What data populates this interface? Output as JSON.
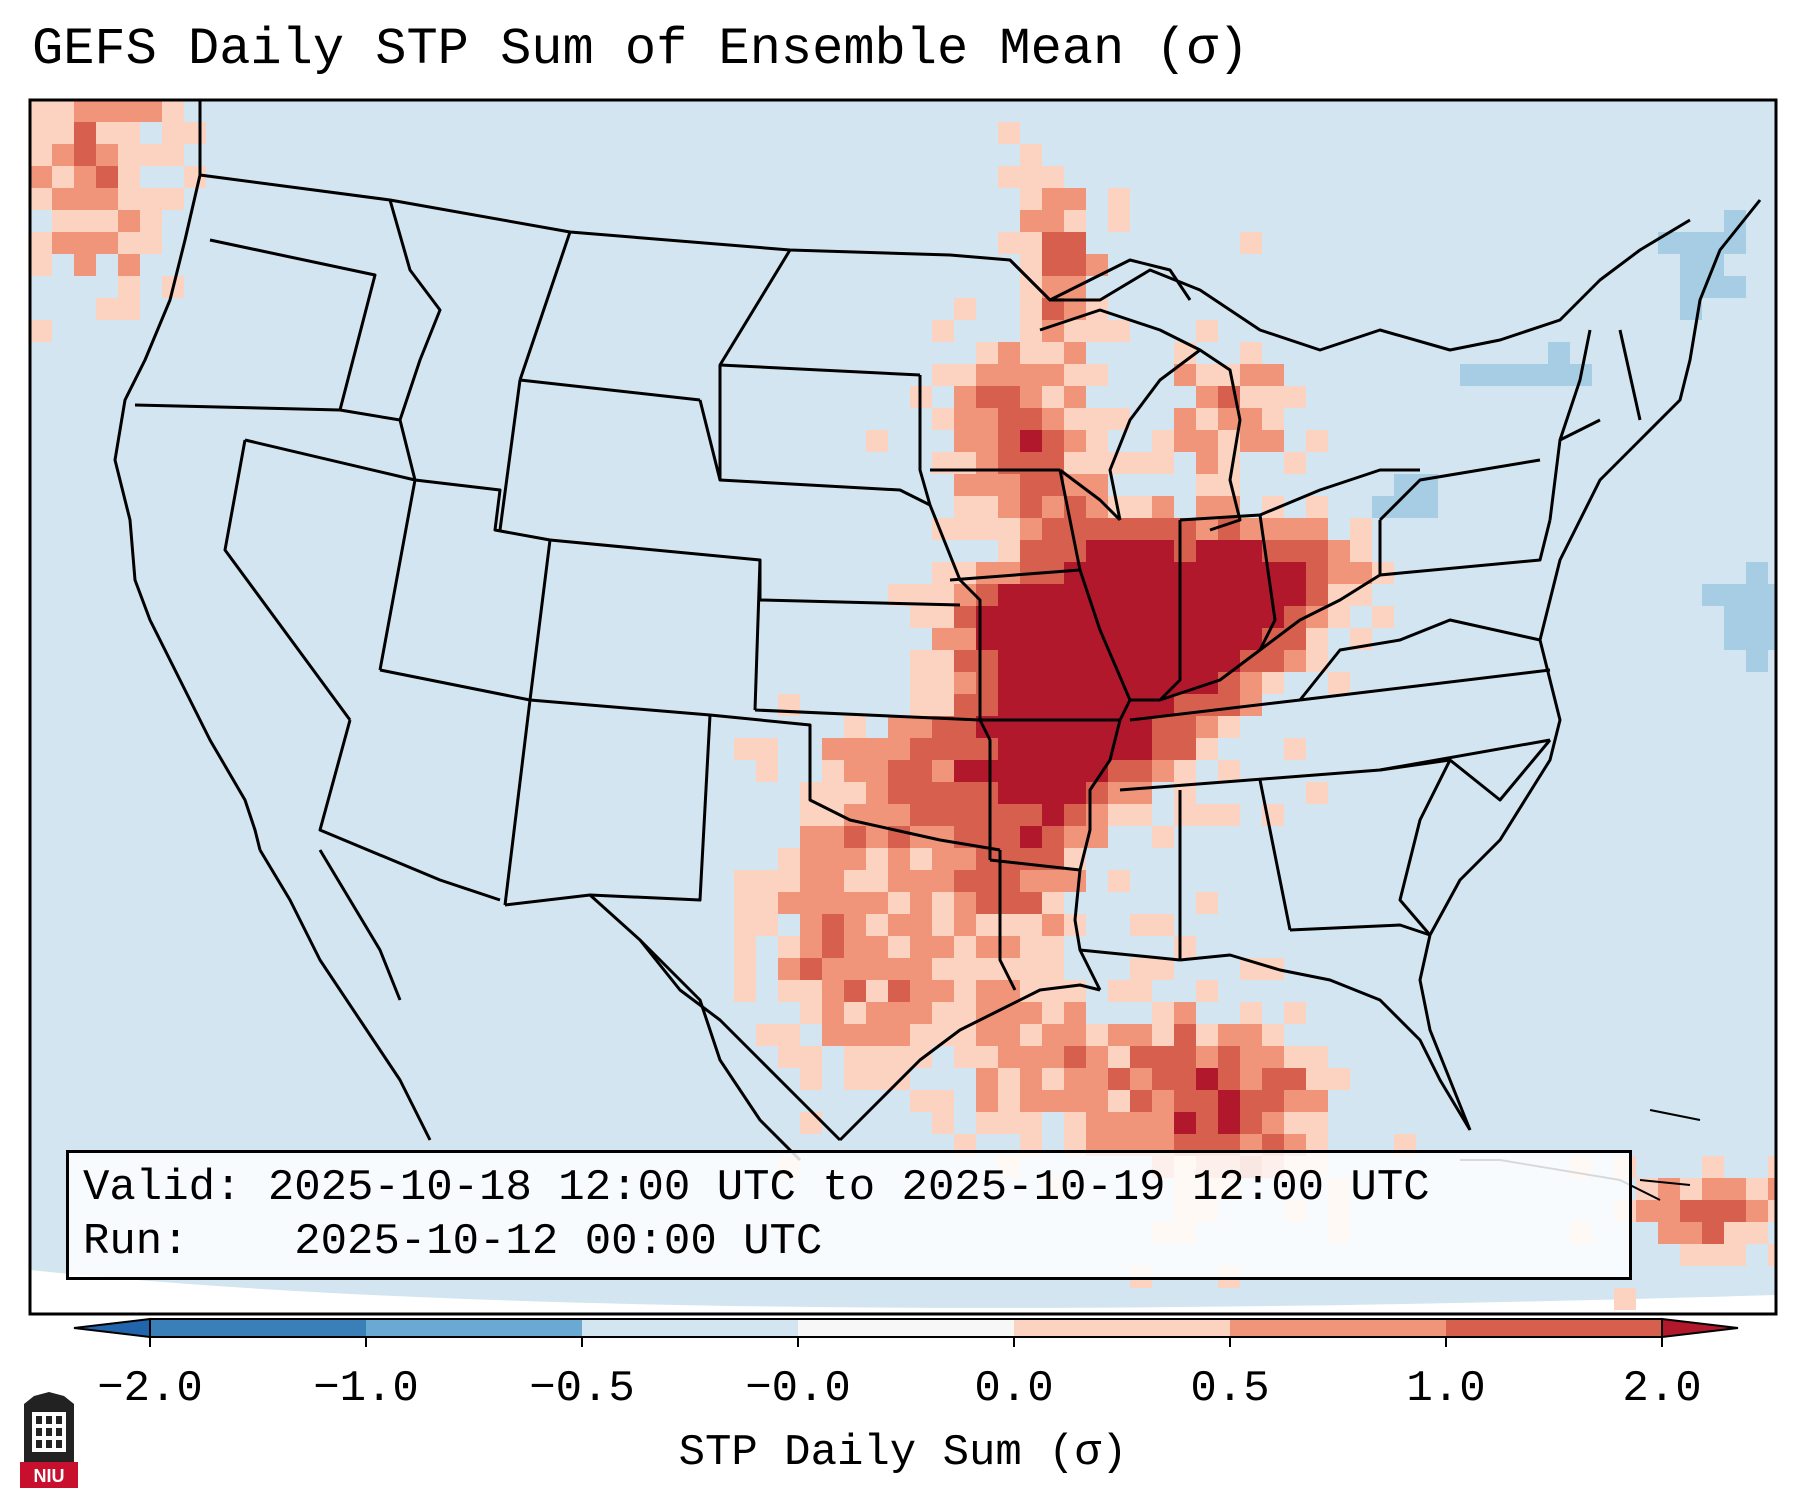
{
  "title": "GEFS Daily STP Sum of Ensemble Mean (σ)",
  "info": {
    "valid_label": "Valid:",
    "valid_value": "2025-10-18 12:00 UTC to 2025-10-19 12:00 UTC",
    "run_label": "Run:",
    "run_value": "2025-10-12 00:00 UTC"
  },
  "colorbar": {
    "label": "STP Daily Sum (σ)",
    "ticks": [
      "−2.0",
      "−1.0",
      "−0.5",
      "−0.0",
      "0.0",
      "0.5",
      "1.0",
      "2.0"
    ],
    "colors": [
      "#3b7fb9",
      "#5e9ecf",
      "#a6cde3",
      "#d2e5f0",
      "#ffffff",
      "#fbd3c0",
      "#f0957a",
      "#d6604d",
      "#b2182b"
    ]
  },
  "map": {
    "ocean_color": "#d2e5f0",
    "region": "Contiguous United States",
    "highlight": "Mississippi / Ohio Valley"
  },
  "logo": {
    "text": "NIU"
  }
}
